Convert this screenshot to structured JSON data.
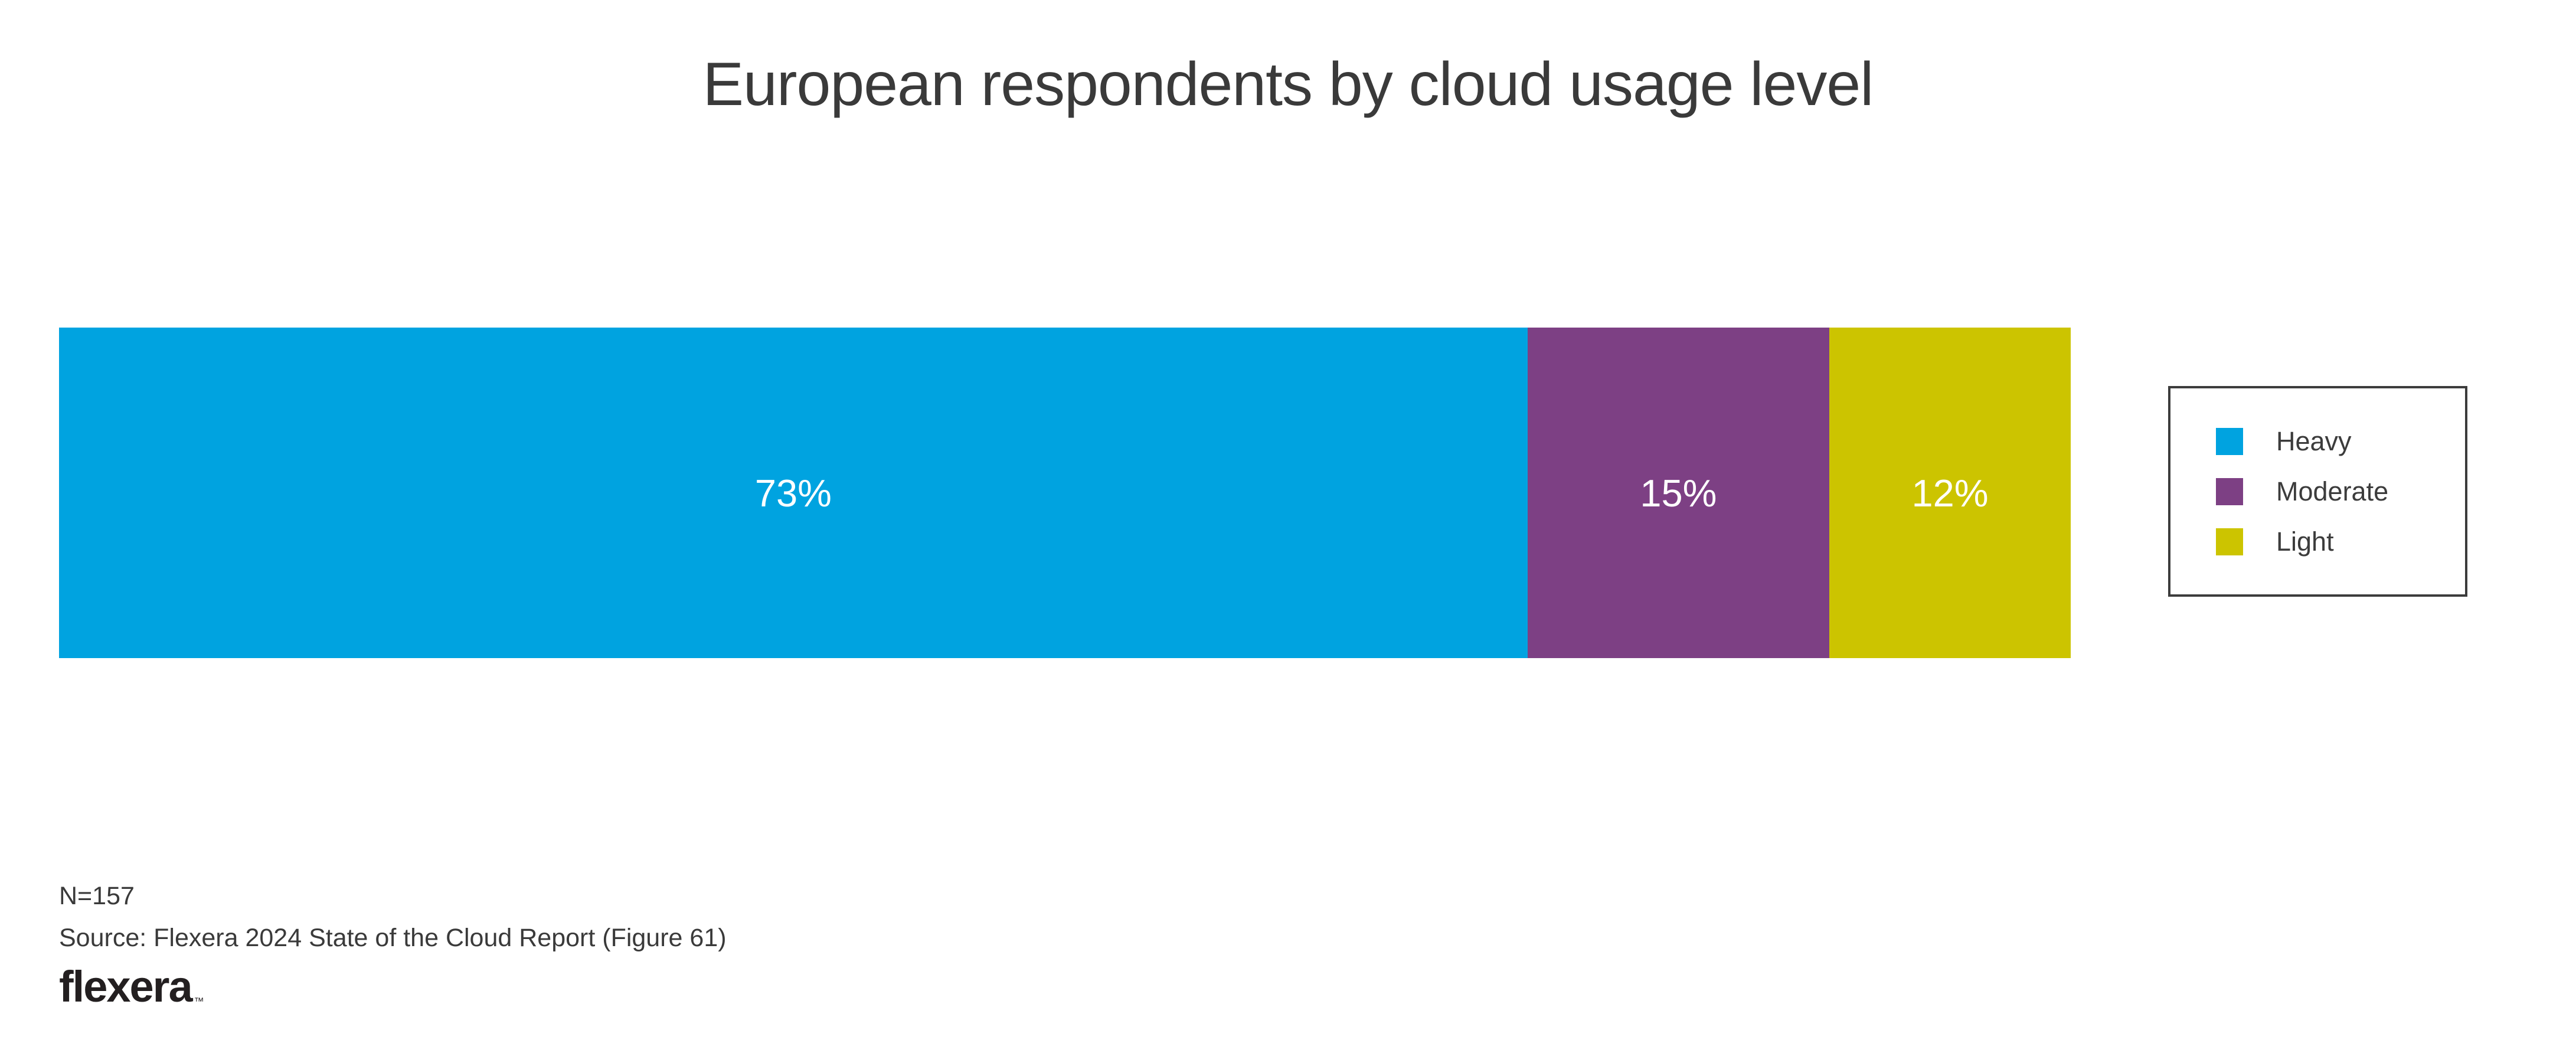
{
  "title": "European respondents by cloud usage level",
  "chart_data": {
    "type": "bar",
    "variant": "horizontal-stacked",
    "title": "European respondents by cloud usage level",
    "categories": [
      "Heavy",
      "Moderate",
      "Light"
    ],
    "values": [
      73,
      15,
      12
    ],
    "segments": [
      {
        "name": "Heavy",
        "value": 73,
        "label": "73%",
        "color": "#00a3e0"
      },
      {
        "name": "Moderate",
        "value": 15,
        "label": "15%",
        "color": "#7d4084"
      },
      {
        "name": "Light",
        "value": 12,
        "label": "12%",
        "color": "#ccc400"
      }
    ],
    "xlim": [
      0,
      100
    ],
    "grid": false,
    "axes_visible": false,
    "legend_position": "right",
    "data_label_color": "#ffffff"
  },
  "legend": {
    "items": [
      {
        "label": "Heavy",
        "color": "#00a3e0"
      },
      {
        "label": "Moderate",
        "color": "#7d4084"
      },
      {
        "label": "Light",
        "color": "#ccc400"
      }
    ]
  },
  "footer": {
    "sample_size": "N=157",
    "source": "Source: Flexera 2024 State of the Cloud Report (Figure 61)",
    "logo_text": "flexera",
    "logo_mark": "™"
  },
  "colors": {
    "background": "#ffffff",
    "title_text": "#3a3a3a",
    "legend_border": "#3c3c3c",
    "legend_text": "#3c3c3c",
    "footer_text": "#3a3a3a",
    "logo_text": "#231f20"
  }
}
